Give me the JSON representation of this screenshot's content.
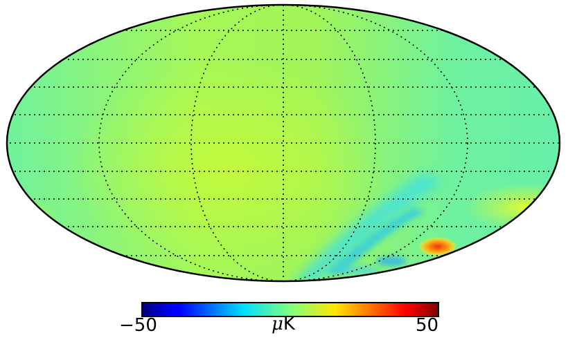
{
  "figure": {
    "projection": "mollweide",
    "graticule": "dotted",
    "colormap": "jet",
    "background_color": "#7ff57f"
  },
  "colorbar": {
    "min_label": "−50",
    "max_label": "50",
    "unit_symbol": "μ",
    "unit_letter": "K",
    "min_value": -50,
    "max_value": 50
  }
}
